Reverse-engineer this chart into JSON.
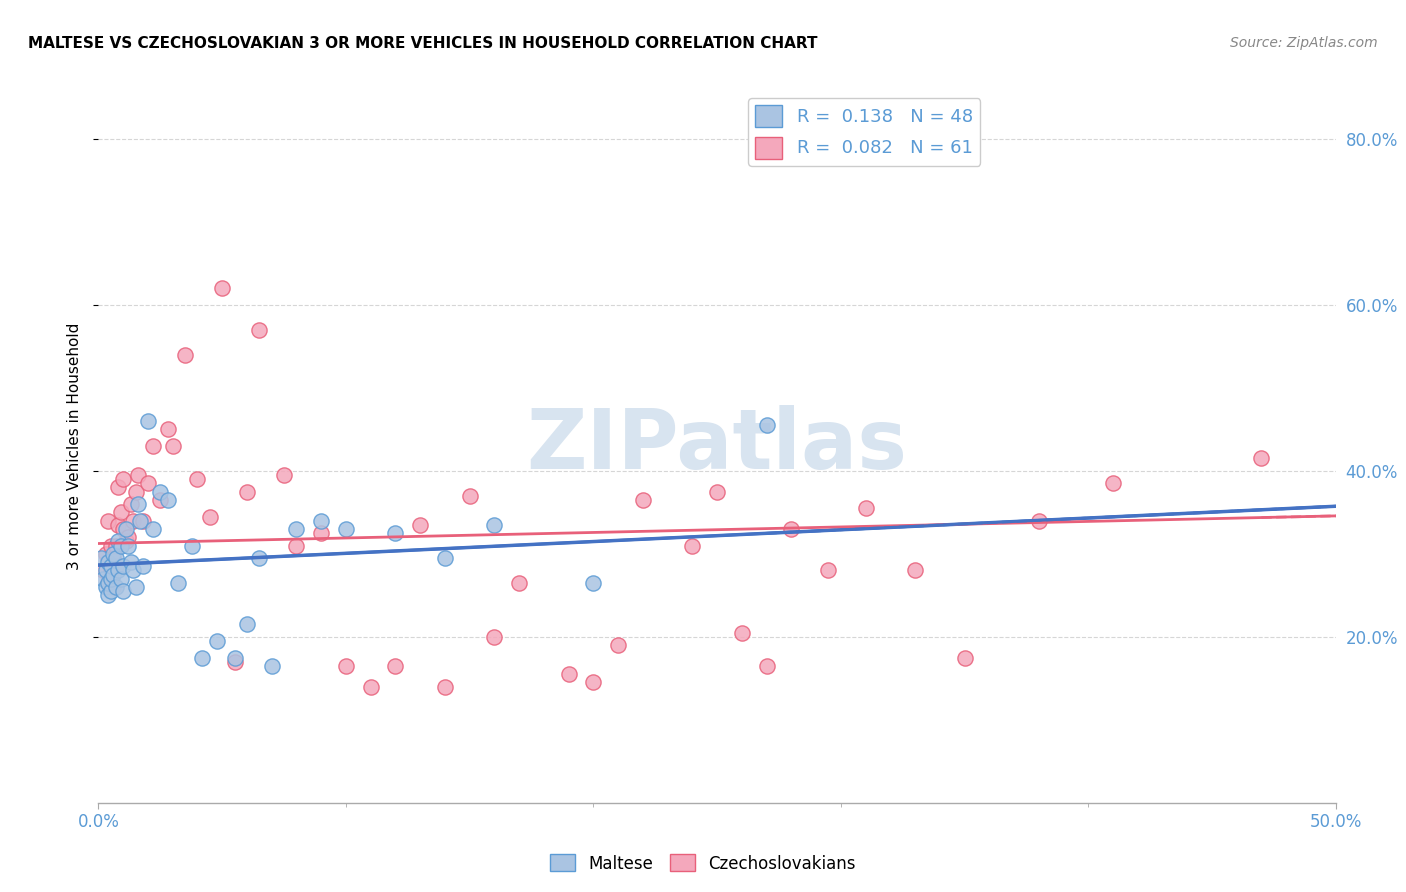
{
  "title": "MALTESE VS CZECHOSLOVAKIAN 3 OR MORE VEHICLES IN HOUSEHOLD CORRELATION CHART",
  "source": "Source: ZipAtlas.com",
  "ylabel": "3 or more Vehicles in Household",
  "xlim": [
    0.0,
    0.5
  ],
  "ylim": [
    0.0,
    0.86
  ],
  "ytick_vals": [
    0.2,
    0.4,
    0.6,
    0.8
  ],
  "ytick_labels": [
    "20.0%",
    "40.0%",
    "60.0%",
    "80.0%"
  ],
  "xtick_vals": [
    0.0,
    0.5
  ],
  "xtick_labels": [
    "0.0%",
    "50.0%"
  ],
  "maltese_color": "#aac4e2",
  "maltese_edge_color": "#5b9bd5",
  "czech_color": "#f4a8bc",
  "czech_edge_color": "#e8607a",
  "maltese_line_color": "#4472c4",
  "czech_line_color": "#e8607a",
  "watermark_color": "#d8e4f0",
  "background_color": "#ffffff",
  "grid_color": "#cccccc",
  "tick_color": "#5b9bd5",
  "maltese_R": 0.138,
  "czech_R": 0.082,
  "maltese_N": 48,
  "czech_N": 61,
  "maltese_x": [
    0.001,
    0.002,
    0.003,
    0.003,
    0.004,
    0.004,
    0.004,
    0.005,
    0.005,
    0.005,
    0.006,
    0.006,
    0.007,
    0.007,
    0.008,
    0.008,
    0.009,
    0.009,
    0.01,
    0.01,
    0.011,
    0.012,
    0.013,
    0.014,
    0.015,
    0.016,
    0.017,
    0.018,
    0.02,
    0.022,
    0.025,
    0.028,
    0.032,
    0.038,
    0.042,
    0.048,
    0.055,
    0.06,
    0.065,
    0.07,
    0.08,
    0.09,
    0.1,
    0.12,
    0.14,
    0.16,
    0.2,
    0.27
  ],
  "maltese_y": [
    0.295,
    0.27,
    0.28,
    0.26,
    0.25,
    0.265,
    0.29,
    0.255,
    0.27,
    0.285,
    0.3,
    0.275,
    0.26,
    0.295,
    0.28,
    0.315,
    0.27,
    0.31,
    0.285,
    0.255,
    0.33,
    0.31,
    0.29,
    0.28,
    0.26,
    0.36,
    0.34,
    0.285,
    0.46,
    0.33,
    0.375,
    0.365,
    0.265,
    0.31,
    0.175,
    0.195,
    0.175,
    0.215,
    0.295,
    0.165,
    0.33,
    0.34,
    0.33,
    0.325,
    0.295,
    0.335,
    0.265,
    0.455
  ],
  "czech_x": [
    0.002,
    0.003,
    0.004,
    0.004,
    0.005,
    0.005,
    0.006,
    0.006,
    0.007,
    0.007,
    0.008,
    0.008,
    0.009,
    0.01,
    0.01,
    0.011,
    0.012,
    0.013,
    0.014,
    0.015,
    0.016,
    0.018,
    0.02,
    0.022,
    0.025,
    0.028,
    0.03,
    0.035,
    0.04,
    0.045,
    0.05,
    0.055,
    0.06,
    0.065,
    0.075,
    0.08,
    0.09,
    0.1,
    0.11,
    0.12,
    0.13,
    0.14,
    0.15,
    0.16,
    0.17,
    0.19,
    0.2,
    0.21,
    0.22,
    0.24,
    0.25,
    0.26,
    0.27,
    0.28,
    0.295,
    0.31,
    0.33,
    0.35,
    0.38,
    0.41,
    0.47
  ],
  "czech_y": [
    0.28,
    0.3,
    0.265,
    0.34,
    0.28,
    0.31,
    0.295,
    0.26,
    0.285,
    0.31,
    0.335,
    0.38,
    0.35,
    0.33,
    0.39,
    0.315,
    0.32,
    0.36,
    0.34,
    0.375,
    0.395,
    0.34,
    0.385,
    0.43,
    0.365,
    0.45,
    0.43,
    0.54,
    0.39,
    0.345,
    0.62,
    0.17,
    0.375,
    0.57,
    0.395,
    0.31,
    0.325,
    0.165,
    0.14,
    0.165,
    0.335,
    0.14,
    0.37,
    0.2,
    0.265,
    0.155,
    0.145,
    0.19,
    0.365,
    0.31,
    0.375,
    0.205,
    0.165,
    0.33,
    0.28,
    0.355,
    0.28,
    0.175,
    0.34,
    0.385,
    0.415
  ]
}
